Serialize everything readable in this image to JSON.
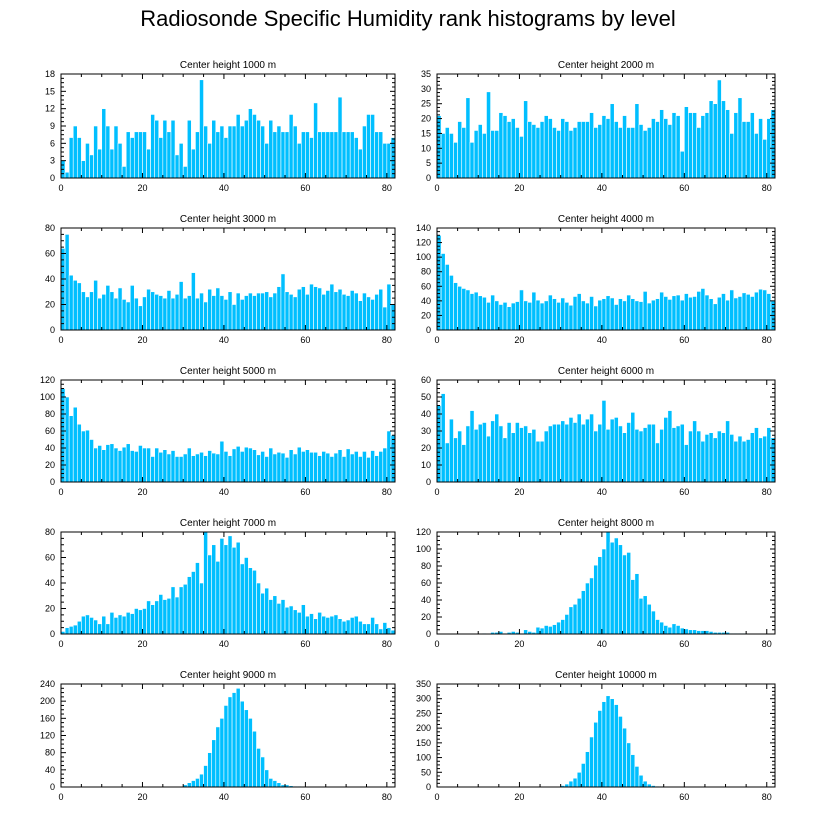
{
  "title": "Radiosonde Specific Humidity rank histograms by level",
  "colors": {
    "bar": "#00bfff",
    "bar_edge": "#ffffff",
    "axis": "#000000",
    "text": "#000000"
  },
  "chart_data": [
    {
      "type": "bar",
      "title": "Center height 1000 m",
      "xlim": [
        0,
        82
      ],
      "xticks": [
        0,
        20,
        40,
        60,
        80
      ],
      "ylim": [
        0,
        18
      ],
      "yticks": [
        0,
        3,
        6,
        9,
        12,
        15,
        18
      ],
      "values": [
        3,
        1,
        7,
        9,
        7,
        3,
        6,
        4,
        9,
        5,
        12,
        9,
        5,
        9,
        6,
        2,
        8,
        7,
        8,
        8,
        8,
        5,
        11,
        10,
        7,
        10,
        8,
        10,
        4,
        6,
        2,
        10,
        5,
        8,
        17,
        9,
        6,
        10,
        8,
        9,
        7,
        9,
        9,
        11,
        9,
        10,
        12,
        11,
        10,
        9,
        6,
        10,
        8,
        9,
        8,
        8,
        11,
        9,
        6,
        8,
        8,
        7,
        13,
        8,
        8,
        8,
        8,
        8,
        14,
        8,
        8,
        8,
        7,
        5,
        9,
        11,
        11,
        8,
        8,
        6,
        6,
        7
      ]
    },
    {
      "type": "bar",
      "title": "Center height 2000 m",
      "xlim": [
        0,
        82
      ],
      "xticks": [
        0,
        20,
        40,
        60,
        80
      ],
      "ylim": [
        0,
        35
      ],
      "yticks": [
        0,
        5,
        10,
        15,
        20,
        25,
        30,
        35
      ],
      "values": [
        21,
        15,
        17,
        15,
        12,
        19,
        17,
        27,
        12,
        16,
        18,
        15,
        29,
        16,
        16,
        22,
        21,
        19,
        20,
        17,
        14,
        26,
        19,
        18,
        17,
        19,
        21,
        20,
        17,
        16,
        20,
        19,
        16,
        17,
        19,
        19,
        19,
        22,
        17,
        18,
        21,
        20,
        25,
        19,
        17,
        21,
        17,
        17,
        25,
        18,
        16,
        17,
        20,
        19,
        23,
        20,
        18,
        22,
        21,
        9,
        24,
        22,
        22,
        17,
        21,
        22,
        26,
        25,
        33,
        26,
        23,
        15,
        22,
        27,
        19,
        19,
        22,
        15,
        20,
        13,
        20,
        23
      ]
    },
    {
      "type": "bar",
      "title": "Center height 3000 m",
      "xlim": [
        0,
        82
      ],
      "xticks": [
        0,
        20,
        40,
        60,
        80
      ],
      "ylim": [
        0,
        80
      ],
      "yticks": [
        0,
        20,
        40,
        60,
        80
      ],
      "values": [
        64,
        75,
        43,
        39,
        37,
        30,
        26,
        30,
        39,
        25,
        28,
        35,
        30,
        25,
        33,
        24,
        22,
        35,
        25,
        19,
        26,
        32,
        30,
        28,
        27,
        25,
        31,
        25,
        28,
        38,
        25,
        27,
        45,
        25,
        29,
        22,
        32,
        27,
        33,
        27,
        24,
        30,
        20,
        29,
        24,
        27,
        29,
        27,
        29,
        29,
        30,
        26,
        29,
        34,
        44,
        30,
        28,
        26,
        32,
        34,
        28,
        36,
        34,
        33,
        28,
        31,
        36,
        30,
        32,
        28,
        27,
        31,
        29,
        23,
        29,
        26,
        24,
        28,
        32,
        18,
        36,
        20
      ]
    },
    {
      "type": "bar",
      "title": "Center height 4000 m",
      "xlim": [
        0,
        82
      ],
      "xticks": [
        0,
        20,
        40,
        60,
        80
      ],
      "ylim": [
        0,
        140
      ],
      "yticks": [
        0,
        20,
        40,
        60,
        80,
        100,
        120,
        140
      ],
      "values": [
        130,
        105,
        90,
        75,
        65,
        60,
        57,
        55,
        50,
        52,
        47,
        45,
        38,
        48,
        40,
        35,
        38,
        32,
        37,
        39,
        55,
        40,
        38,
        52,
        41,
        37,
        40,
        48,
        43,
        38,
        44,
        38,
        34,
        46,
        50,
        40,
        37,
        46,
        33,
        41,
        43,
        47,
        44,
        35,
        43,
        40,
        48,
        43,
        40,
        39,
        53,
        37,
        41,
        43,
        52,
        46,
        42,
        47,
        48,
        41,
        50,
        45,
        46,
        53,
        57,
        48,
        43,
        36,
        45,
        50,
        41,
        55,
        44,
        46,
        51,
        49,
        46,
        52,
        56,
        55,
        50,
        40
      ]
    },
    {
      "type": "bar",
      "title": "Center height 5000 m",
      "xlim": [
        0,
        82
      ],
      "xticks": [
        0,
        20,
        40,
        60,
        80
      ],
      "ylim": [
        0,
        120
      ],
      "yticks": [
        0,
        20,
        40,
        60,
        80,
        100,
        120
      ],
      "values": [
        110,
        100,
        78,
        88,
        68,
        60,
        61,
        50,
        40,
        43,
        38,
        44,
        45,
        40,
        37,
        41,
        45,
        37,
        36,
        43,
        40,
        40,
        30,
        40,
        35,
        38,
        33,
        37,
        30,
        30,
        33,
        40,
        31,
        33,
        35,
        31,
        37,
        34,
        33,
        48,
        36,
        31,
        39,
        42,
        36,
        41,
        40,
        38,
        32,
        36,
        30,
        40,
        33,
        35,
        34,
        29,
        38,
        33,
        41,
        36,
        38,
        35,
        35,
        31,
        36,
        34,
        30,
        34,
        38,
        30,
        39,
        33,
        36,
        30,
        36,
        29,
        37,
        31,
        36,
        40,
        60,
        55
      ]
    },
    {
      "type": "bar",
      "title": "Center height 6000 m",
      "xlim": [
        0,
        82
      ],
      "xticks": [
        0,
        20,
        40,
        60,
        80
      ],
      "ylim": [
        0,
        60
      ],
      "yticks": [
        0,
        10,
        20,
        30,
        40,
        50,
        60
      ],
      "values": [
        45,
        52,
        23,
        37,
        26,
        30,
        22,
        33,
        42,
        31,
        34,
        35,
        27,
        36,
        40,
        33,
        26,
        35,
        29,
        35,
        32,
        33,
        29,
        31,
        24,
        24,
        30,
        33,
        34,
        34,
        36,
        34,
        38,
        35,
        40,
        34,
        37,
        40,
        30,
        34,
        48,
        31,
        37,
        38,
        33,
        29,
        35,
        41,
        31,
        30,
        32,
        34,
        34,
        23,
        31,
        38,
        42,
        32,
        33,
        34,
        22,
        30,
        36,
        30,
        24,
        28,
        29,
        26,
        30,
        29,
        36,
        28,
        24,
        27,
        24,
        25,
        29,
        32,
        26,
        27,
        32,
        26
      ]
    },
    {
      "type": "bar",
      "title": "Center height 7000 m",
      "xlim": [
        0,
        82
      ],
      "xticks": [
        0,
        20,
        40,
        60,
        80
      ],
      "ylim": [
        0,
        80
      ],
      "yticks": [
        0,
        20,
        40,
        60,
        80
      ],
      "values": [
        2,
        5,
        6,
        7,
        10,
        14,
        15,
        13,
        11,
        8,
        14,
        8,
        17,
        13,
        15,
        14,
        17,
        16,
        20,
        19,
        20,
        26,
        23,
        26,
        31,
        27,
        28,
        37,
        29,
        37,
        39,
        45,
        49,
        56,
        40,
        80,
        62,
        70,
        57,
        75,
        70,
        77,
        68,
        72,
        55,
        60,
        52,
        50,
        40,
        32,
        36,
        27,
        30,
        24,
        27,
        21,
        22,
        19,
        17,
        23,
        14,
        16,
        12,
        17,
        14,
        13,
        14,
        15,
        12,
        10,
        11,
        13,
        14,
        10,
        8,
        8,
        13,
        8,
        4,
        9,
        5,
        3
      ]
    },
    {
      "type": "bar",
      "title": "Center height 8000 m",
      "xlim": [
        0,
        82
      ],
      "xticks": [
        0,
        20,
        40,
        60,
        80
      ],
      "ylim": [
        0,
        120
      ],
      "yticks": [
        0,
        20,
        40,
        60,
        80,
        100,
        120
      ],
      "values": [
        0,
        0,
        0,
        0,
        0,
        0,
        0,
        0,
        0,
        0,
        0,
        1,
        0,
        2,
        2,
        3,
        1,
        2,
        3,
        2,
        1,
        5,
        3,
        2,
        8,
        7,
        10,
        9,
        11,
        14,
        17,
        23,
        32,
        35,
        42,
        51,
        60,
        66,
        81,
        91,
        100,
        120,
        108,
        113,
        105,
        93,
        96,
        64,
        71,
        42,
        45,
        35,
        27,
        17,
        14,
        10,
        8,
        12,
        10,
        7,
        6,
        5,
        5,
        4,
        4,
        4,
        3,
        2,
        2,
        2,
        2,
        1,
        1,
        1,
        1,
        0,
        0,
        0,
        0,
        0,
        0,
        0
      ]
    },
    {
      "type": "bar",
      "title": "Center height 9000 m",
      "xlim": [
        0,
        82
      ],
      "xticks": [
        0,
        20,
        40,
        60,
        80
      ],
      "ylim": [
        0,
        240
      ],
      "yticks": [
        0,
        40,
        80,
        120,
        160,
        200,
        240
      ],
      "values": [
        0,
        0,
        0,
        0,
        0,
        0,
        0,
        0,
        0,
        0,
        0,
        0,
        0,
        0,
        0,
        0,
        0,
        0,
        0,
        0,
        0,
        0,
        0,
        0,
        0,
        0,
        0,
        0,
        0,
        0,
        5,
        10,
        15,
        20,
        30,
        50,
        80,
        110,
        140,
        160,
        190,
        210,
        220,
        230,
        200,
        180,
        160,
        130,
        90,
        70,
        40,
        20,
        15,
        10,
        5,
        5,
        3,
        2,
        2,
        1,
        1,
        1,
        0,
        0,
        0,
        0,
        0,
        0,
        0,
        0,
        0,
        0,
        0,
        0,
        0,
        0,
        0,
        0,
        0,
        0,
        0,
        0
      ]
    },
    {
      "type": "bar",
      "title": "Center height 10000 m",
      "xlim": [
        0,
        82
      ],
      "xticks": [
        0,
        20,
        40,
        60,
        80
      ],
      "ylim": [
        0,
        350
      ],
      "yticks": [
        0,
        50,
        100,
        150,
        200,
        250,
        300,
        350
      ],
      "values": [
        0,
        0,
        0,
        0,
        0,
        0,
        0,
        0,
        0,
        0,
        0,
        0,
        0,
        0,
        0,
        0,
        0,
        0,
        0,
        0,
        0,
        0,
        0,
        0,
        0,
        0,
        0,
        0,
        0,
        0,
        5,
        10,
        20,
        30,
        50,
        80,
        120,
        170,
        220,
        260,
        290,
        310,
        300,
        280,
        240,
        200,
        150,
        110,
        70,
        40,
        20,
        10,
        5,
        3,
        2,
        1,
        1,
        0,
        0,
        0,
        0,
        0,
        0,
        0,
        0,
        0,
        0,
        0,
        0,
        0,
        0,
        0,
        0,
        0,
        0,
        0,
        0,
        0,
        0,
        0,
        0,
        0
      ]
    }
  ]
}
